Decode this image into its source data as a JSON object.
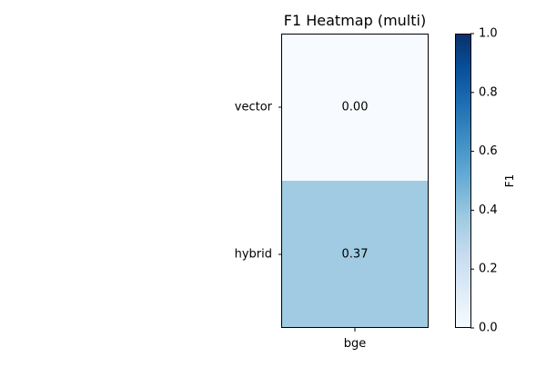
{
  "chart_data": {
    "type": "heatmap",
    "title": "F1 Heatmap (multi)",
    "xlabel": "",
    "ylabel": "",
    "x_categories": [
      "bge"
    ],
    "y_categories": [
      "vector",
      "hybrid"
    ],
    "values": [
      [
        0.0
      ],
      [
        0.37
      ]
    ],
    "cell_labels": [
      [
        "0.00"
      ],
      [
        "0.37"
      ]
    ],
    "colormap": "Blues",
    "colormap_stops": [
      "#f7fbff",
      "#deebf7",
      "#c6dbef",
      "#9ecae1",
      "#6baed6",
      "#4292c6",
      "#2171b5",
      "#08519c",
      "#08306b"
    ],
    "colorbar": {
      "label": "F1",
      "range": [
        0.0,
        1.0
      ],
      "ticks": [
        0.0,
        0.2,
        0.4,
        0.6,
        0.8,
        1.0
      ],
      "tick_labels": [
        "0.0",
        "0.2",
        "0.4",
        "0.6",
        "0.8",
        "1.0"
      ],
      "placement": "right"
    },
    "grid": false
  }
}
